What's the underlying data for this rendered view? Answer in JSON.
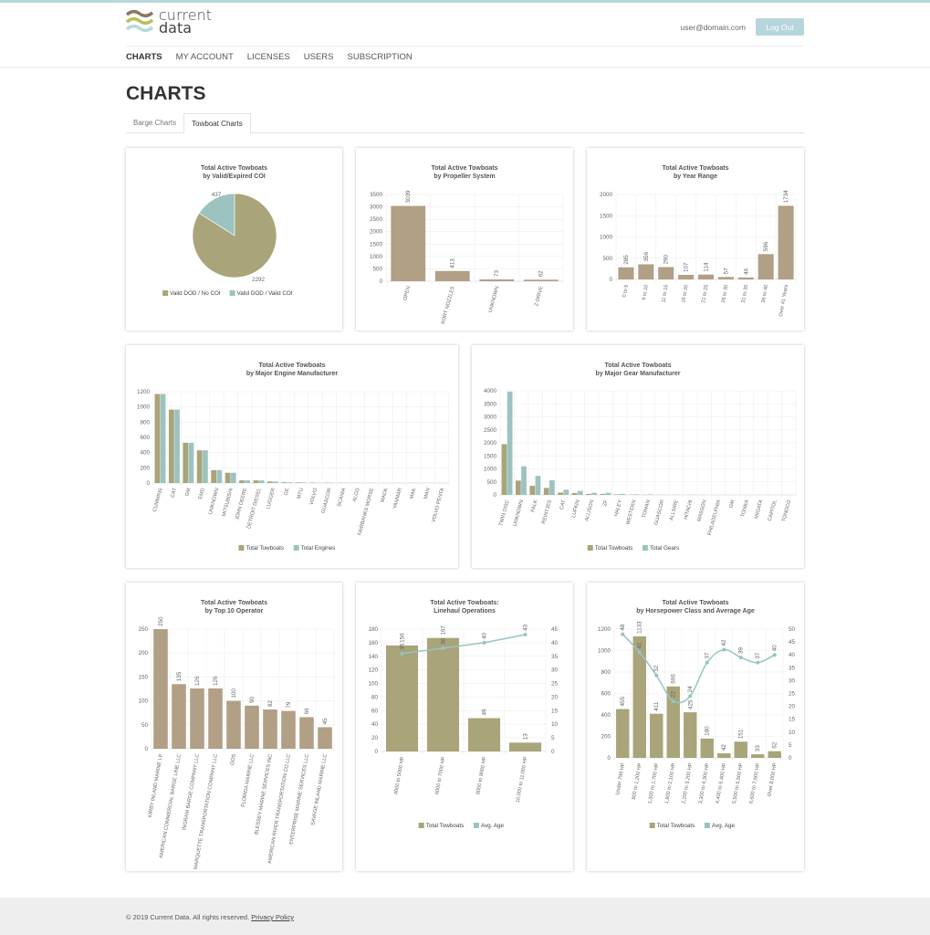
{
  "header": {
    "logo_text": [
      "current",
      "data"
    ],
    "user_email": "user@domain.com",
    "logout_label": "Log Out"
  },
  "nav": {
    "items": [
      "CHARTS",
      "MY ACCOUNT",
      "LICENSES",
      "USERS",
      "SUBSCRIPTION"
    ],
    "active": "CHARTS"
  },
  "page": {
    "title": "CHARTS"
  },
  "tabs": {
    "items": [
      "Barge Charts",
      "Towboat Charts"
    ],
    "active": "Towboat Charts"
  },
  "footer": {
    "copyright": "© 2019 Current Data. All rights reserved.",
    "privacy_link": "Privacy Policy"
  },
  "colors": {
    "tan": "#b19f86",
    "olive": "#a9a479",
    "teal": "#9dc3c1",
    "accent": "#b7d5dd"
  },
  "chart_data": [
    {
      "type": "pie",
      "title": [
        "Total Active Towboats",
        "by Valid/Expired COI"
      ],
      "categories": [
        "Valid DOD / No COI",
        "Valid DOD / Valid COI"
      ],
      "values": [
        2292,
        437
      ],
      "colors": [
        "#a9a479",
        "#9dc3c1"
      ],
      "legend": "bottom"
    },
    {
      "type": "bar",
      "title": [
        "Total Active Towboats",
        "by Propeller System"
      ],
      "categories": [
        "OPEN",
        "KORT NOZZLES",
        "UNKNOWN",
        "Z-DRIVE"
      ],
      "series": [
        {
          "values": [
            3039,
            413,
            73,
            62
          ],
          "color": "#b19f86"
        }
      ],
      "ylim": [
        0,
        3500
      ],
      "ytick": 500,
      "data_labels": true,
      "grid": true
    },
    {
      "type": "bar",
      "title": [
        "Total Active Towboats",
        "by Year Range"
      ],
      "categories": [
        "0 to 5",
        "6 to 10",
        "11 to 15",
        "16 to 20",
        "21 to 25",
        "26 to 30",
        "31 to 35",
        "36 to 40",
        "Over 41 Years"
      ],
      "series": [
        {
          "values": [
            285,
            356,
            290,
            107,
            114,
            57,
            46,
            596,
            1734
          ],
          "color": "#b19f86"
        }
      ],
      "ylim": [
        0,
        2000
      ],
      "ytick": 500,
      "data_labels": true,
      "grid": true
    },
    {
      "type": "bar",
      "title": [
        "Total Active Towboats",
        "by Major Engine Manufacturer"
      ],
      "categories": [
        "CUMMINS",
        "CAT",
        "GM",
        "EMD",
        "UNKNOWN",
        "MITSUBISHI",
        "JOHN DEERE",
        "DETROIT DIESEL",
        "LUGGER",
        "GE",
        "MTU",
        "VOLVO",
        "GUASCOR",
        "SCANIA",
        "ALCO",
        "FAIRBANKS MORSE",
        "MACK",
        "YANMAR",
        "MAK",
        "MAN",
        "VOLVO PENTA"
      ],
      "series": [
        {
          "name": "Total Towboats",
          "color": "#a9a479",
          "values": [
            1170,
            965,
            530,
            430,
            170,
            135,
            35,
            35,
            20,
            10,
            8,
            5,
            4,
            3,
            2,
            1,
            1,
            1,
            1,
            1,
            1
          ]
        },
        {
          "name": "Total Engines",
          "color": "#9dc3c1",
          "values": [
            1170,
            965,
            530,
            430,
            170,
            135,
            35,
            35,
            20,
            10,
            8,
            5,
            4,
            3,
            2,
            1,
            1,
            1,
            1,
            1,
            1
          ]
        }
      ],
      "ylim": [
        0,
        1200
      ],
      "ytick": 200,
      "legend": "bottom",
      "grid": true
    },
    {
      "type": "bar",
      "title": [
        "Total Active Towboats",
        "by Major Gear Manufacturer"
      ],
      "categories": [
        "TWIN DISC",
        "UNKNOWN",
        "FALK",
        "REINTJES",
        "CAT",
        "LUFKIN",
        "ALLISON",
        "ZF",
        "HALEY",
        "WESTERN",
        "TOMAN",
        "GUASCOR",
        "ALLSIRE",
        "HITACHI",
        "MASSON",
        "PHILADELPHIA",
        "GM",
        "TONKA",
        "NIIGATA",
        "CAPITOL",
        "TONOCO"
      ],
      "series": [
        {
          "name": "Total Towboats",
          "color": "#a9a479",
          "values": [
            1950,
            550,
            350,
            270,
            90,
            70,
            40,
            40,
            20,
            10,
            8,
            3,
            2,
            2,
            2,
            1,
            1,
            1,
            1,
            1,
            1
          ]
        },
        {
          "name": "Total Gears",
          "color": "#9dc3c1",
          "values": [
            3970,
            1100,
            730,
            560,
            200,
            150,
            80,
            80,
            40,
            25,
            20,
            5,
            3,
            3,
            3,
            2,
            2,
            2,
            2,
            2,
            2
          ]
        }
      ],
      "ylim": [
        0,
        4000
      ],
      "ytick": 500,
      "legend": "bottom",
      "grid": true
    },
    {
      "type": "bar",
      "title": [
        "Total Active Towboats",
        "by Top 10 Operator"
      ],
      "categories": [
        "KIRBY INLAND MARINE LP",
        "AMERICAN COMMERCIAL BARGE LINE LLC",
        "INGRAM BARGE COMPANY LLC",
        "MARQUETTE TRANSPORTATION COMPANY LLC",
        "OOS",
        "FLORIDA MARINE LLC",
        "BLESSEY MARINE SERVICES INC",
        "AMERICAN RIVER TRANSPORTATION CO LLC",
        "ENTERPRISE MARINE SERVICES LLC",
        "SAVAGE INLAND MARINE LLC"
      ],
      "series": [
        {
          "values": [
            250,
            135,
            126,
            126,
            100,
            90,
            82,
            79,
            66,
            45
          ],
          "color": "#b19f86"
        }
      ],
      "ylim": [
        0,
        250
      ],
      "ytick": 50,
      "data_labels": true,
      "grid": true
    },
    {
      "type": "bar+line",
      "title": [
        "Total Active Towboats:",
        "Linehaul Operations"
      ],
      "categories": [
        "4000 to 5000 HP",
        "6000 to 7000 HP",
        "8000 to 9000 HP",
        "10,000 to 11,000 HP"
      ],
      "series": [
        {
          "name": "Total Towboats",
          "color": "#a9a479",
          "values": [
            156,
            167,
            49,
            13
          ]
        },
        {
          "name": "Avg. Age",
          "color": "#96c4c2",
          "axis": "right",
          "values": [
            36,
            38,
            40,
            43
          ]
        }
      ],
      "ylim": [
        0,
        180
      ],
      "ytick": 20,
      "y2lim": [
        0,
        45
      ],
      "y2tick": 5,
      "data_labels": true,
      "legend": "bottom",
      "grid": true
    },
    {
      "type": "bar+line",
      "title": [
        "Total Active Towboats",
        "by Horsepower Class and Average Age"
      ],
      "categories": [
        "Under 799 HP",
        "800 to 1,200 HP",
        "1,300 to 1,700 HP",
        "1,800 to 2,100 HP",
        "2,200 to 3,200 HP",
        "3,300 to 4,300 HP",
        "4,400 to 5,400 HP",
        "5,500 to 6,500 HP",
        "6,600 to 7,600 HP",
        "Over 8,000 HP"
      ],
      "series": [
        {
          "name": "Total Towboats",
          "color": "#a9a479",
          "values": [
            455,
            1133,
            411,
            666,
            425,
            180,
            42,
            151,
            33,
            62
          ]
        },
        {
          "name": "Avg. Age",
          "color": "#96c4c2",
          "axis": "right",
          "smooth": true,
          "values": [
            48,
            41,
            32,
            22,
            24,
            37,
            42,
            39,
            37,
            40
          ]
        }
      ],
      "ylim": [
        0,
        1200
      ],
      "ytick": 200,
      "y2lim": [
        0,
        50
      ],
      "y2tick": 5,
      "data_labels": true,
      "legend": "bottom",
      "grid": true
    }
  ]
}
